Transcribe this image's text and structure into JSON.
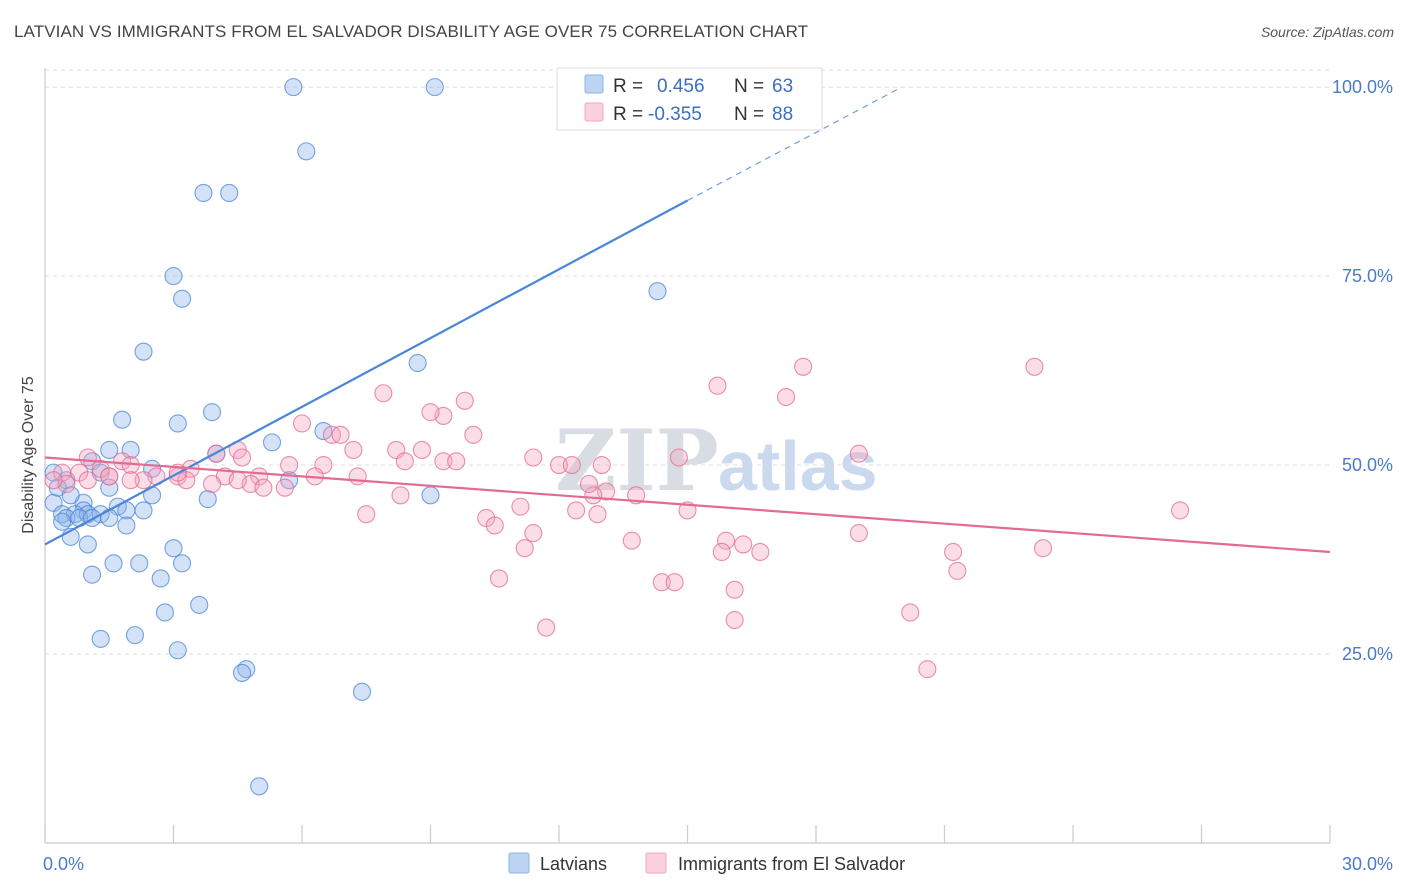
{
  "header": {
    "title": "LATVIAN VS IMMIGRANTS FROM EL SALVADOR DISABILITY AGE OVER 75 CORRELATION CHART",
    "source": "Source: ZipAtlas.com"
  },
  "watermark": {
    "zip": "ZIP",
    "atlas": "atlas"
  },
  "legend": {
    "rows": [
      {
        "r_label": "R =",
        "r_value": "0.456",
        "n_label": "N =",
        "n_value": "63",
        "color": "#8db4ea"
      },
      {
        "r_label": "R =",
        "r_value": "-0.355",
        "n_label": "N =",
        "n_value": "88",
        "color": "#f4a6c0"
      }
    ]
  },
  "bottom_legend": {
    "items": [
      {
        "label": "Latvians",
        "color": "#8db4ea"
      },
      {
        "label": "Immigrants from El Salvador",
        "color": "#f4a6c0"
      }
    ]
  },
  "chart_data": {
    "type": "scatter",
    "title": "LATVIAN VS IMMIGRANTS FROM EL SALVADOR DISABILITY AGE OVER 75 CORRELATION CHART",
    "xlabel": "",
    "ylabel": "Disability Age Over 75",
    "xlim": [
      0,
      30
    ],
    "ylim": [
      0,
      102
    ],
    "x_tick_labels": [
      "0.0%",
      "30.0%"
    ],
    "y_ticks": [
      25,
      50,
      75,
      100
    ],
    "y_tick_labels": [
      "25.0%",
      "50.0%",
      "75.0%",
      "100.0%"
    ],
    "grid": true,
    "series": [
      {
        "name": "Latvians",
        "color": "#4a86d8",
        "fill": "#8db4ea",
        "points": [
          [
            5.8,
            100
          ],
          [
            9.1,
            100
          ],
          [
            6.1,
            91.5
          ],
          [
            3.7,
            86
          ],
          [
            4.3,
            86
          ],
          [
            3.0,
            75
          ],
          [
            3.2,
            72
          ],
          [
            14.3,
            73
          ],
          [
            2.3,
            65
          ],
          [
            8.7,
            63.5
          ],
          [
            3.9,
            57
          ],
          [
            1.8,
            56
          ],
          [
            3.1,
            55.5
          ],
          [
            6.5,
            54.5
          ],
          [
            5.3,
            53
          ],
          [
            1.5,
            52
          ],
          [
            2.0,
            52
          ],
          [
            4.0,
            51.5
          ],
          [
            1.1,
            50.5
          ],
          [
            2.5,
            49.5
          ],
          [
            1.3,
            49
          ],
          [
            0.2,
            49
          ],
          [
            0.5,
            48
          ],
          [
            1.5,
            47
          ],
          [
            2.5,
            46
          ],
          [
            3.8,
            45.5
          ],
          [
            9.0,
            46
          ],
          [
            5.7,
            48
          ],
          [
            0.2,
            45
          ],
          [
            0.9,
            45
          ],
          [
            1.7,
            44.5
          ],
          [
            0.9,
            44
          ],
          [
            1.9,
            44
          ],
          [
            2.3,
            44
          ],
          [
            0.4,
            43.5
          ],
          [
            0.7,
            43.5
          ],
          [
            1.0,
            43.5
          ],
          [
            1.3,
            43.5
          ],
          [
            0.5,
            43
          ],
          [
            0.8,
            43
          ],
          [
            1.1,
            43
          ],
          [
            1.5,
            43
          ],
          [
            0.4,
            42.5
          ],
          [
            1.9,
            42
          ],
          [
            0.6,
            40.5
          ],
          [
            1.0,
            39.5
          ],
          [
            3.0,
            39
          ],
          [
            1.6,
            37
          ],
          [
            2.2,
            37
          ],
          [
            3.2,
            37
          ],
          [
            1.1,
            35.5
          ],
          [
            2.7,
            35
          ],
          [
            2.8,
            30.5
          ],
          [
            3.6,
            31.5
          ],
          [
            1.3,
            27
          ],
          [
            2.1,
            27.5
          ],
          [
            3.1,
            25.5
          ],
          [
            4.7,
            23
          ],
          [
            4.6,
            22.5
          ],
          [
            7.4,
            20
          ],
          [
            5.0,
            7.5
          ],
          [
            0.3,
            47
          ],
          [
            0.6,
            46
          ]
        ],
        "trend": {
          "x": [
            0,
            15
          ],
          "y": [
            39.5,
            85
          ],
          "dashed_to": [
            20,
            100
          ]
        }
      },
      {
        "name": "Immigrants from El Salvador",
        "color": "#e36b93",
        "fill": "#f4a6c0",
        "points": [
          [
            17.7,
            63
          ],
          [
            23.1,
            63
          ],
          [
            15.7,
            60.5
          ],
          [
            17.3,
            59
          ],
          [
            7.9,
            59.5
          ],
          [
            9.8,
            58.5
          ],
          [
            9.3,
            56.5
          ],
          [
            9.0,
            57
          ],
          [
            6.0,
            55.5
          ],
          [
            6.7,
            54
          ],
          [
            6.9,
            54
          ],
          [
            10.0,
            54
          ],
          [
            4.5,
            52
          ],
          [
            4.0,
            51.5
          ],
          [
            7.2,
            52
          ],
          [
            8.2,
            52
          ],
          [
            8.8,
            52
          ],
          [
            11.4,
            51
          ],
          [
            14.8,
            51
          ],
          [
            19.0,
            51.5
          ],
          [
            1.0,
            51
          ],
          [
            1.8,
            50.5
          ],
          [
            2.0,
            50
          ],
          [
            4.6,
            51
          ],
          [
            8.4,
            50.5
          ],
          [
            9.3,
            50.5
          ],
          [
            9.6,
            50.5
          ],
          [
            12.0,
            50
          ],
          [
            12.3,
            50
          ],
          [
            13.0,
            50
          ],
          [
            5.7,
            50
          ],
          [
            6.5,
            50
          ],
          [
            3.4,
            49.5
          ],
          [
            0.4,
            49
          ],
          [
            0.8,
            49
          ],
          [
            1.5,
            48.5
          ],
          [
            2.6,
            48.5
          ],
          [
            3.1,
            48.5
          ],
          [
            4.2,
            48.5
          ],
          [
            5.0,
            48.5
          ],
          [
            6.3,
            48.5
          ],
          [
            7.3,
            48.5
          ],
          [
            2.3,
            48
          ],
          [
            3.3,
            48
          ],
          [
            3.9,
            47.5
          ],
          [
            1.0,
            48
          ],
          [
            4.8,
            47.5
          ],
          [
            5.1,
            47
          ],
          [
            5.6,
            47
          ],
          [
            0.5,
            47.5
          ],
          [
            13.1,
            46.5
          ],
          [
            13.8,
            46
          ],
          [
            12.8,
            46
          ],
          [
            8.3,
            46
          ],
          [
            11.1,
            44.5
          ],
          [
            12.4,
            44
          ],
          [
            12.9,
            43.5
          ],
          [
            15.0,
            44
          ],
          [
            7.5,
            43.5
          ],
          [
            26.5,
            44
          ],
          [
            10.3,
            43
          ],
          [
            10.5,
            42
          ],
          [
            11.4,
            41
          ],
          [
            15.9,
            40
          ],
          [
            16.3,
            39.5
          ],
          [
            13.7,
            40
          ],
          [
            19.0,
            41
          ],
          [
            21.2,
            38.5
          ],
          [
            23.3,
            39
          ],
          [
            11.2,
            39
          ],
          [
            16.7,
            38.5
          ],
          [
            15.8,
            38.5
          ],
          [
            21.3,
            36
          ],
          [
            14.4,
            34.5
          ],
          [
            14.7,
            34.5
          ],
          [
            10.6,
            35
          ],
          [
            16.1,
            33.5
          ],
          [
            20.2,
            30.5
          ],
          [
            11.7,
            28.5
          ],
          [
            16.1,
            29.5
          ],
          [
            20.6,
            23
          ],
          [
            0.2,
            48
          ],
          [
            1.3,
            49.5
          ],
          [
            2.0,
            48
          ],
          [
            3.1,
            49
          ],
          [
            4.5,
            48
          ],
          [
            1.5,
            48.5
          ],
          [
            12.7,
            47.5
          ]
        ],
        "trend": {
          "x": [
            0,
            30
          ],
          "y": [
            51,
            38.5
          ]
        }
      }
    ]
  }
}
